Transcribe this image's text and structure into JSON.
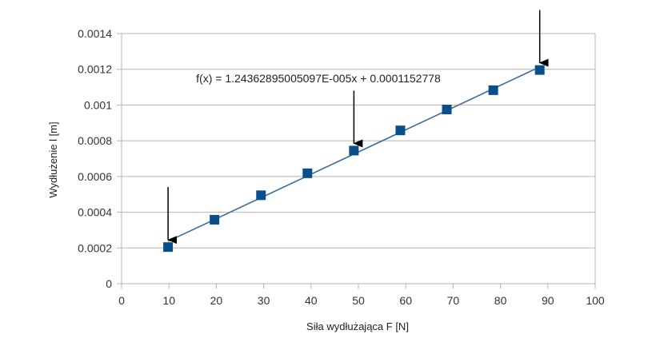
{
  "chart_data": {
    "type": "scatter",
    "title": "",
    "xlabel": "Siła wydłużająca F [N]",
    "ylabel": "Wydłużenie l [m]",
    "xlim": [
      0,
      100
    ],
    "ylim": [
      0,
      0.0014
    ],
    "x_ticks": [
      "0",
      "10",
      "20",
      "30",
      "40",
      "50",
      "60",
      "70",
      "80",
      "90",
      "100"
    ],
    "y_ticks": [
      "0",
      "0.0002",
      "0.0004",
      "0.0006",
      "0.0008",
      "0.001",
      "0.0012",
      "0.0014"
    ],
    "grid": true,
    "legend": "none",
    "series": [
      {
        "marker": "square",
        "color": "#0b4f8a",
        "x": [
          9.81,
          19.62,
          29.43,
          39.24,
          49.05,
          58.86,
          68.67,
          78.48,
          88.29
        ],
        "y": [
          0.000205,
          0.000358,
          0.000495,
          0.000618,
          0.000745,
          0.000858,
          0.000975,
          0.001083,
          0.001196
        ]
      }
    ],
    "trendline": {
      "color": "#3a6e9e",
      "slope": 1.243628950051e-05,
      "intercept": 0.0001152778,
      "x_range": [
        9.81,
        88.29
      ],
      "equation_label": "f(x) = 1.24362895005097E-005x + 0.0001152778"
    },
    "annotations": [
      {
        "type": "arrow",
        "target_x": 9.81,
        "target_y": 0.000205
      },
      {
        "type": "arrow",
        "target_x": 49.05,
        "target_y": 0.000745
      },
      {
        "type": "arrow",
        "target_x": 88.29,
        "target_y": 0.001196
      }
    ]
  }
}
